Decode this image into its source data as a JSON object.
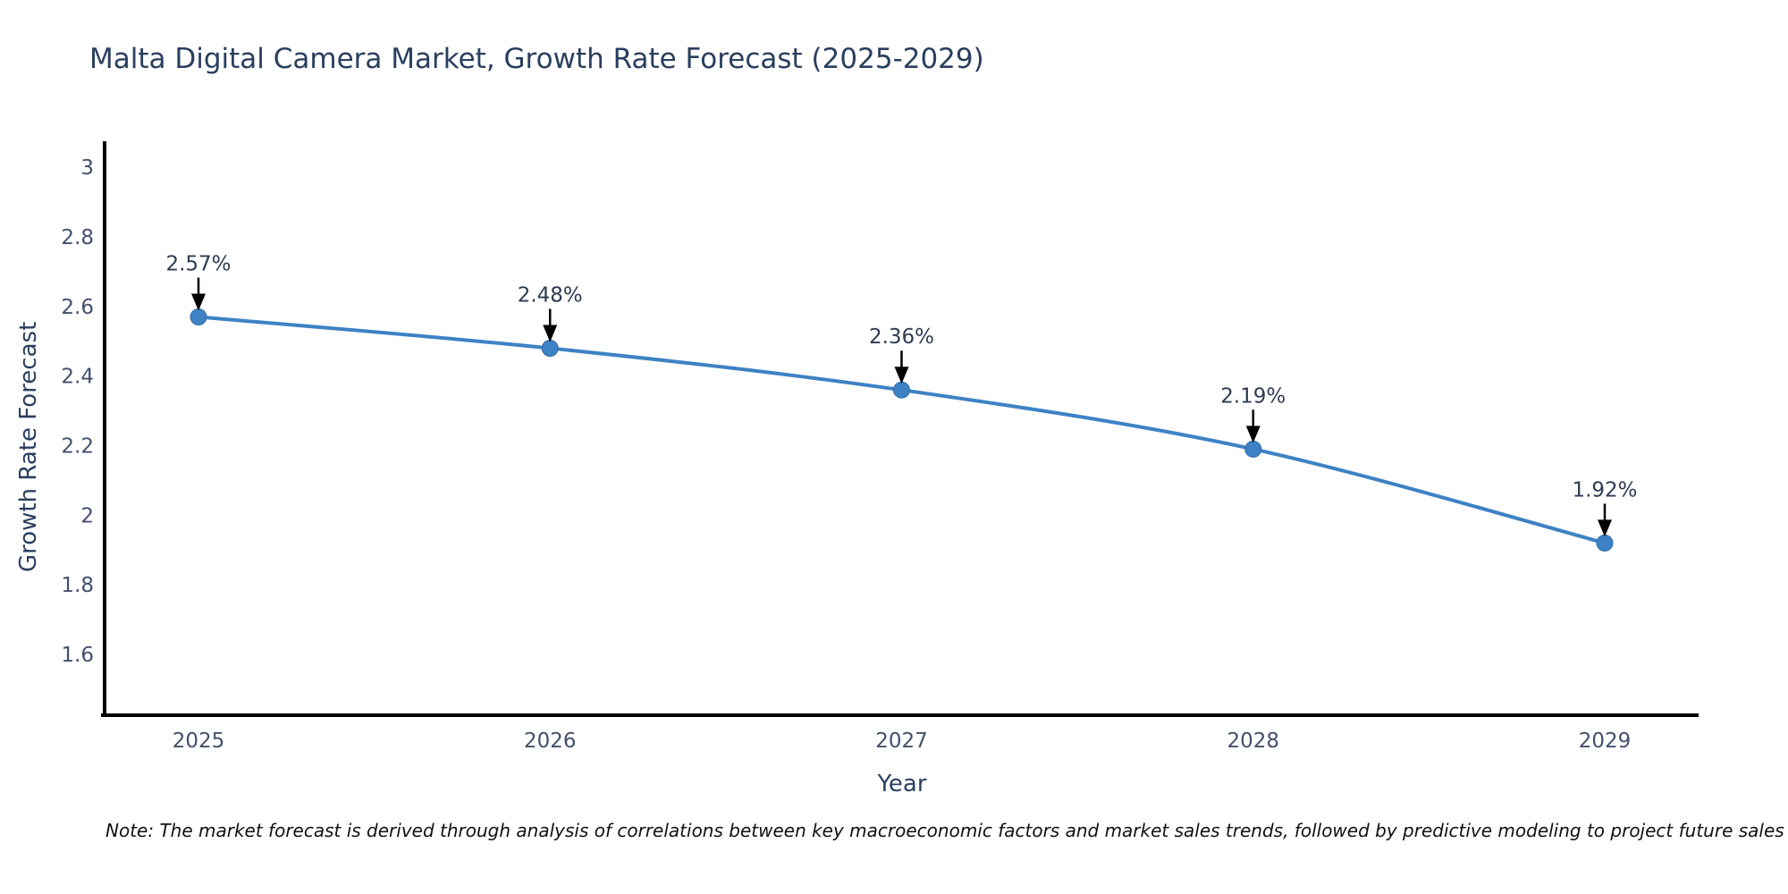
{
  "note": "Note: The market forecast is derived through analysis of correlations between key macroeconomic factors and market sales trends, followed by predictive modeling to project future sales",
  "chart_data": {
    "type": "line",
    "title": "Malta Digital Camera Market, Growth Rate Forecast (2025-2029)",
    "xlabel": "Year",
    "ylabel": "Growth Rate Forecast",
    "x": [
      2025,
      2026,
      2027,
      2028,
      2029
    ],
    "values": [
      2.57,
      2.48,
      2.36,
      2.19,
      1.92
    ],
    "data_labels": [
      "2.57%",
      "2.48%",
      "2.36%",
      "2.19%",
      "1.92%"
    ],
    "yticks": [
      3,
      2.8,
      2.6,
      2.4,
      2.2,
      2,
      1.8,
      1.6
    ],
    "ylim": [
      1.425,
      3.075
    ],
    "grid": false,
    "legend": "none",
    "line_color": "#3d82c4",
    "marker_color": "#3d82c4",
    "marker_edge_color": "#2f6ba3",
    "annotation_arrow_color": "#000000",
    "axis_color": "#000000",
    "tick_label_color": "#42516d",
    "annotation_text_color": "#2f3b52"
  }
}
